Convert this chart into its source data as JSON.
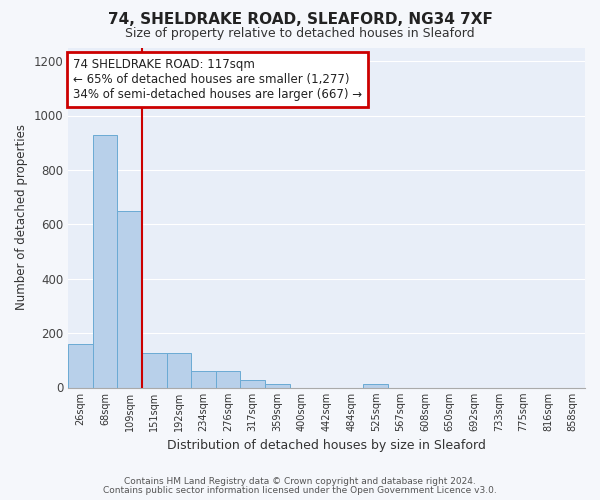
{
  "title_line1": "74, SHELDRAKE ROAD, SLEAFORD, NG34 7XF",
  "title_line2": "Size of property relative to detached houses in Sleaford",
  "xlabel": "Distribution of detached houses by size in Sleaford",
  "ylabel": "Number of detached properties",
  "categories": [
    "26sqm",
    "68sqm",
    "109sqm",
    "151sqm",
    "192sqm",
    "234sqm",
    "276sqm",
    "317sqm",
    "359sqm",
    "400sqm",
    "442sqm",
    "484sqm",
    "525sqm",
    "567sqm",
    "608sqm",
    "650sqm",
    "692sqm",
    "733sqm",
    "775sqm",
    "816sqm",
    "858sqm"
  ],
  "values": [
    160,
    930,
    650,
    127,
    127,
    62,
    62,
    27,
    14,
    0,
    0,
    0,
    14,
    0,
    0,
    0,
    0,
    0,
    0,
    0,
    0
  ],
  "bar_color": "#b8d0ea",
  "bar_edge_color": "#6aaad4",
  "red_line_x": 2.5,
  "annotation_text": "74 SHELDRAKE ROAD: 117sqm\n← 65% of detached houses are smaller (1,277)\n34% of semi-detached houses are larger (667) →",
  "annotation_box_color": "#ffffff",
  "annotation_box_edge": "#cc0000",
  "ylim": [
    0,
    1250
  ],
  "yticks": [
    0,
    200,
    400,
    600,
    800,
    1000,
    1200
  ],
  "fig_background": "#f5f7fb",
  "plot_background": "#e8eef8",
  "grid_color": "#ffffff",
  "footer_line1": "Contains HM Land Registry data © Crown copyright and database right 2024.",
  "footer_line2": "Contains public sector information licensed under the Open Government Licence v3.0."
}
